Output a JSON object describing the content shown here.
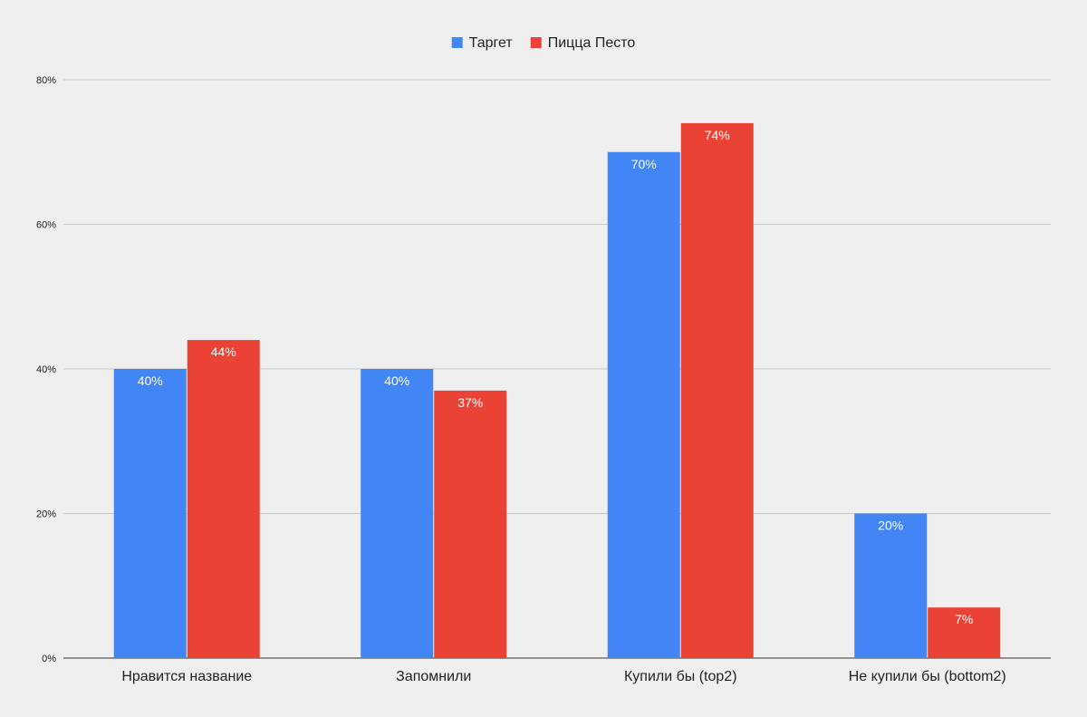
{
  "chart_data": {
    "type": "bar",
    "categories": [
      "Нравится название",
      "Запомнили",
      "Купили бы (top2)",
      "Не купили бы (bottom2)"
    ],
    "series": [
      {
        "name": "Таргет",
        "values": [
          40,
          40,
          70,
          20
        ],
        "color": "#4285f4",
        "labels": [
          "40%",
          "40%",
          "70%",
          "20%"
        ]
      },
      {
        "name": "Пицца Песто",
        "values": [
          44,
          37,
          74,
          7
        ],
        "color": "#ea4335",
        "labels": [
          "44%",
          "37%",
          "74%",
          "7%"
        ]
      }
    ],
    "yticks": [
      0,
      20,
      40,
      60,
      80
    ],
    "ytick_labels": [
      "0%",
      "20%",
      "40%",
      "60%",
      "80%"
    ],
    "ylim": [
      0,
      80
    ],
    "grid": true,
    "legend_position": "top-center",
    "title": "",
    "xlabel": "",
    "ylabel": ""
  }
}
